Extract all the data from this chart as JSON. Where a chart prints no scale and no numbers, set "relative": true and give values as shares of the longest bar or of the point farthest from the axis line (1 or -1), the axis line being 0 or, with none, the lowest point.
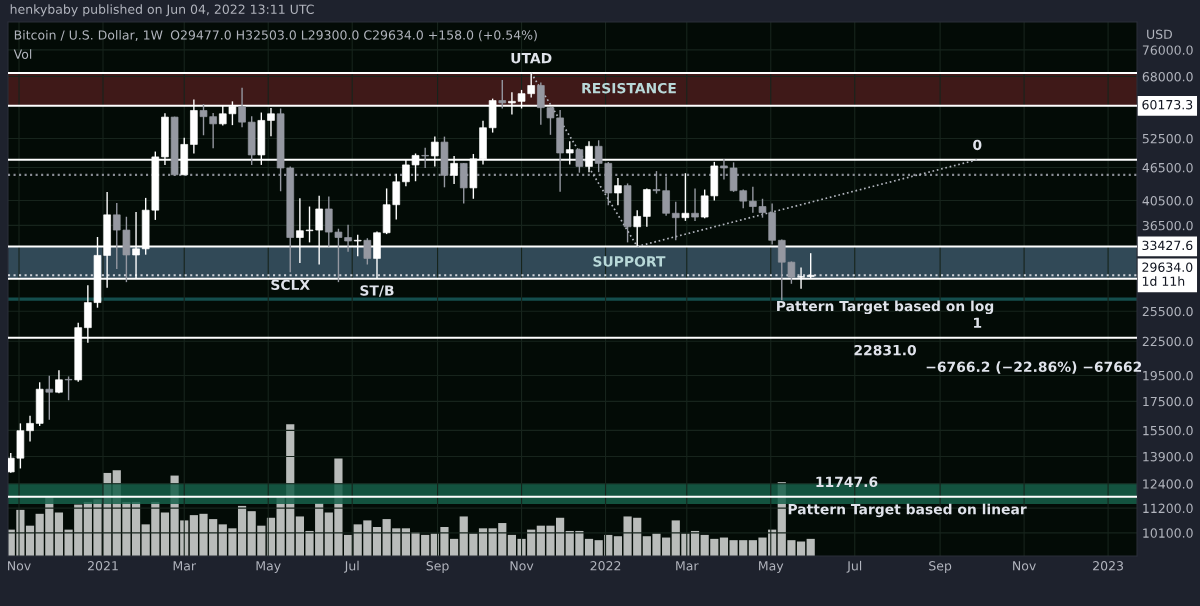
{
  "chart_data": [
    {
      "type": "candlestick",
      "title": "Bitcoin / U.S. Dollar, 1W",
      "ylabel": "USD",
      "x": [
        "2020-10-26",
        "2020-11-02",
        "2020-11-09",
        "2020-11-16",
        "2020-11-23",
        "2020-11-30",
        "2020-12-07",
        "2020-12-14",
        "2020-12-21",
        "2020-12-28",
        "2021-01-04",
        "2021-01-11",
        "2021-01-18",
        "2021-01-25",
        "2021-02-01",
        "2021-02-08",
        "2021-02-15",
        "2021-02-22",
        "2021-03-01",
        "2021-03-08",
        "2021-03-15",
        "2021-03-22",
        "2021-03-29",
        "2021-04-05",
        "2021-04-12",
        "2021-04-19",
        "2021-04-26",
        "2021-05-03",
        "2021-05-10",
        "2021-05-17",
        "2021-05-24",
        "2021-05-31",
        "2021-06-07",
        "2021-06-14",
        "2021-06-21",
        "2021-06-28",
        "2021-07-05",
        "2021-07-12",
        "2021-07-19",
        "2021-07-26",
        "2021-08-02",
        "2021-08-09",
        "2021-08-16",
        "2021-08-23",
        "2021-08-30",
        "2021-09-06",
        "2021-09-13",
        "2021-09-20",
        "2021-09-27",
        "2021-10-04",
        "2021-10-11",
        "2021-10-18",
        "2021-10-25",
        "2021-11-01",
        "2021-11-08",
        "2021-11-15",
        "2021-11-22",
        "2021-11-29",
        "2021-12-06",
        "2021-12-13",
        "2021-12-20",
        "2021-12-27",
        "2022-01-03",
        "2022-01-10",
        "2022-01-17",
        "2022-01-24",
        "2022-01-31",
        "2022-02-07",
        "2022-02-14",
        "2022-02-21",
        "2022-02-28",
        "2022-03-07",
        "2022-03-14",
        "2022-03-21",
        "2022-03-28",
        "2022-04-04",
        "2022-04-11",
        "2022-04-18",
        "2022-04-25",
        "2022-05-02",
        "2022-05-09",
        "2022-05-16",
        "2022-05-23",
        "2022-05-30"
      ],
      "ohlc": [
        [
          13030,
          14100,
          12980,
          13800
        ],
        [
          13800,
          15960,
          13220,
          15480
        ],
        [
          15480,
          16480,
          14800,
          15960
        ],
        [
          15960,
          18950,
          15790,
          18410
        ],
        [
          18410,
          19480,
          16200,
          18180
        ],
        [
          18180,
          19920,
          18110,
          19150
        ],
        [
          19150,
          19420,
          17580,
          19140
        ],
        [
          19140,
          24300,
          19000,
          23810
        ],
        [
          23810,
          28420,
          22350,
          26440
        ],
        [
          26440,
          34780,
          25880,
          32200
        ],
        [
          32200,
          41950,
          28130,
          38150
        ],
        [
          38150,
          40100,
          30420,
          35800
        ],
        [
          35800,
          37850,
          28800,
          32260
        ],
        [
          32260,
          38590,
          29240,
          33100
        ],
        [
          33100,
          40950,
          32300,
          38900
        ],
        [
          38900,
          49700,
          37350,
          48600
        ],
        [
          48600,
          58350,
          47000,
          57400
        ],
        [
          57400,
          57500,
          44900,
          45100
        ],
        [
          45100,
          52650,
          45000,
          51200
        ],
        [
          51200,
          61800,
          49300,
          59000
        ],
        [
          59000,
          60600,
          53200,
          57500
        ],
        [
          57500,
          58400,
          50400,
          55800
        ],
        [
          55800,
          60200,
          55400,
          58200
        ],
        [
          58200,
          61300,
          55500,
          60000
        ],
        [
          60000,
          64900,
          55000,
          56200
        ],
        [
          56200,
          57600,
          47000,
          49000
        ],
        [
          49000,
          58500,
          47000,
          56600
        ],
        [
          56600,
          59600,
          53000,
          58200
        ],
        [
          58200,
          59500,
          42100,
          46400
        ],
        [
          46400,
          46700,
          30000,
          34700
        ],
        [
          34700,
          40900,
          31200,
          35700
        ],
        [
          35700,
          39500,
          34000,
          35800
        ],
        [
          35800,
          41300,
          31000,
          39100
        ],
        [
          39100,
          41200,
          33400,
          35500
        ],
        [
          35500,
          36000,
          28800,
          34700
        ],
        [
          34700,
          36600,
          32700,
          34200
        ],
        [
          34200,
          35100,
          32100,
          34300
        ],
        [
          34300,
          34600,
          31000,
          31800
        ],
        [
          31800,
          35600,
          29300,
          35400
        ],
        [
          35400,
          42600,
          35200,
          39800
        ],
        [
          39800,
          45300,
          37400,
          43800
        ],
        [
          43800,
          48100,
          43000,
          47000
        ],
        [
          47000,
          49300,
          43900,
          48900
        ],
        [
          48900,
          50500,
          46400,
          48800
        ],
        [
          48800,
          52900,
          46700,
          51700
        ],
        [
          51700,
          52900,
          42800,
          45000
        ],
        [
          45000,
          48800,
          43400,
          47300
        ],
        [
          47300,
          47400,
          40000,
          42700
        ],
        [
          42700,
          49200,
          40800,
          48200
        ],
        [
          48200,
          56500,
          47100,
          54900
        ],
        [
          54900,
          62000,
          53800,
          61500
        ],
        [
          61500,
          67000,
          59500,
          60900
        ],
        [
          60900,
          63700,
          58000,
          61300
        ],
        [
          61300,
          64300,
          59500,
          63300
        ],
        [
          63300,
          69000,
          62300,
          65500
        ],
        [
          65500,
          66300,
          55600,
          59700
        ],
        [
          59700,
          59800,
          53300,
          57200
        ],
        [
          57200,
          59100,
          42000,
          49400
        ],
        [
          49400,
          51900,
          47100,
          50100
        ],
        [
          50100,
          50300,
          45500,
          46700
        ],
        [
          46700,
          51900,
          45600,
          50800
        ],
        [
          50800,
          52100,
          45600,
          47300
        ],
        [
          47300,
          47600,
          39700,
          41800
        ],
        [
          41800,
          44500,
          39700,
          43100
        ],
        [
          43100,
          43500,
          34000,
          36300
        ],
        [
          36300,
          38900,
          33430,
          37900
        ],
        [
          37900,
          42600,
          36300,
          42400
        ],
        [
          42400,
          45800,
          41700,
          42200
        ],
        [
          42200,
          44800,
          38000,
          38400
        ],
        [
          38400,
          40300,
          34300,
          37700
        ],
        [
          37700,
          45400,
          37200,
          38400
        ],
        [
          38400,
          42600,
          37200,
          37800
        ],
        [
          37800,
          42400,
          37600,
          41300
        ],
        [
          41300,
          47600,
          40500,
          46800
        ],
        [
          46800,
          48200,
          44200,
          46400
        ],
        [
          46400,
          47500,
          42000,
          42200
        ],
        [
          42200,
          42400,
          39200,
          40400
        ],
        [
          40400,
          42900,
          38500,
          39500
        ],
        [
          39500,
          40800,
          37700,
          38500
        ],
        [
          38500,
          40000,
          33700,
          34300
        ],
        [
          34300,
          34400,
          26700,
          31300
        ],
        [
          31300,
          31400,
          28600,
          29400
        ],
        [
          29400,
          30600,
          28000,
          29477
        ],
        [
          29477,
          32503,
          29300,
          29634
        ]
      ],
      "colors": [
        "#ffffff",
        "#ffffff",
        "#ffffff",
        "#ffffff",
        "#9598a1",
        "#ffffff",
        "#9598a1",
        "#ffffff",
        "#ffffff",
        "#ffffff",
        "#ffffff",
        "#9598a1",
        "#9598a1",
        "#ffffff",
        "#ffffff",
        "#ffffff",
        "#ffffff",
        "#9598a1",
        "#ffffff",
        "#ffffff",
        "#9598a1",
        "#9598a1",
        "#ffffff",
        "#ffffff",
        "#9598a1",
        "#9598a1",
        "#ffffff",
        "#ffffff",
        "#9598a1",
        "#9598a1",
        "#ffffff",
        "#ffffff",
        "#ffffff",
        "#9598a1",
        "#9598a1",
        "#9598a1",
        "#ffffff",
        "#9598a1",
        "#ffffff",
        "#ffffff",
        "#ffffff",
        "#ffffff",
        "#ffffff",
        "#9598a1",
        "#ffffff",
        "#9598a1",
        "#ffffff",
        "#9598a1",
        "#ffffff",
        "#ffffff",
        "#ffffff",
        "#9598a1",
        "#ffffff",
        "#ffffff",
        "#ffffff",
        "#9598a1",
        "#9598a1",
        "#9598a1",
        "#ffffff",
        "#9598a1",
        "#ffffff",
        "#9598a1",
        "#9598a1",
        "#ffffff",
        "#9598a1",
        "#ffffff",
        "#ffffff",
        "#9598a1",
        "#9598a1",
        "#9598a1",
        "#ffffff",
        "#9598a1",
        "#ffffff",
        "#ffffff",
        "#9598a1",
        "#9598a1",
        "#9598a1",
        "#9598a1",
        "#9598a1",
        "#9598a1",
        "#9598a1",
        "#9598a1",
        "#ffffff",
        "#ffffff"
      ],
      "series": [
        {
          "type": "line",
          "x": [
            "2021-11-08",
            "2022-01-24"
          ],
          "values": [
            69000,
            33430
          ],
          "color": "#b2b5be",
          "line_style": "dotted"
        },
        {
          "type": "line",
          "x": [
            "2022-01-24",
            "2022-09-28"
          ],
          "values": [
            33430,
            48020
          ],
          "color": "#b2b5be",
          "line_style": "dotted"
        }
      ],
      "log": "y",
      "grid": true,
      "xlim": [
        "2020-10-24",
        "2023-01-22"
      ],
      "ylim": [
        9170,
        85400
      ],
      "xticks": [
        {
          "value": "2020-11-01",
          "label": "Nov"
        },
        {
          "value": "2021-01-01",
          "label": "2021"
        },
        {
          "value": "2021-03-01",
          "label": "Mar"
        },
        {
          "value": "2021-05-01",
          "label": "May"
        },
        {
          "value": "2021-07-01",
          "label": "Jul"
        },
        {
          "value": "2021-09-01",
          "label": "Sep"
        },
        {
          "value": "2021-11-01",
          "label": "Nov"
        },
        {
          "value": "2022-01-01",
          "label": "2022"
        },
        {
          "value": "2022-03-01",
          "label": "Mar"
        },
        {
          "value": "2022-05-01",
          "label": "May"
        },
        {
          "value": "2022-07-01",
          "label": "Jul"
        },
        {
          "value": "2022-09-01",
          "label": "Sep"
        },
        {
          "value": "2022-11-01",
          "label": "Nov"
        },
        {
          "value": "2023-01-01",
          "label": "2023"
        }
      ],
      "yticks": [
        {
          "value": 76000,
          "label": "76000.0"
        },
        {
          "value": 68000,
          "label": "68000.0"
        },
        {
          "value": 52500,
          "label": "52500.0"
        },
        {
          "value": 46500,
          "label": "46500.0"
        },
        {
          "value": 40500,
          "label": "40500.0"
        },
        {
          "value": 36500,
          "label": "36500.0"
        },
        {
          "value": 25500,
          "label": "25500.0"
        },
        {
          "value": 22500,
          "label": "22500.0"
        },
        {
          "value": 19500,
          "label": "19500.0"
        },
        {
          "value": 17500,
          "label": "17500.0"
        },
        {
          "value": 15500,
          "label": "15500.0"
        },
        {
          "value": 13900,
          "label": "13900.0"
        },
        {
          "value": 12400,
          "label": "12400.0"
        },
        {
          "value": 11200,
          "label": "11200.0"
        },
        {
          "value": 10100,
          "label": "10100.0"
        }
      ],
      "bands": [
        {
          "axis": "y",
          "from": 60173.3,
          "to": 69030,
          "color": "#4a1c1c",
          "label": "RESISTANCE"
        },
        {
          "axis": "y",
          "from": 29200,
          "to": 33427.6,
          "color": "#3a5566",
          "label": "SUPPORT"
        },
        {
          "axis": "y",
          "from": 26650,
          "to": 27000,
          "color": "#175a5a"
        },
        {
          "axis": "y",
          "from": 11390,
          "to": 12430,
          "color": "#16604a"
        }
      ],
      "ref_lines": [
        {
          "axis": "y",
          "value": 69030,
          "color": "#ffffff",
          "line_style": "solid"
        },
        {
          "axis": "y",
          "value": 60173.3,
          "label": "60173.3",
          "color": "#ffffff",
          "line_style": "solid"
        },
        {
          "axis": "y",
          "value": 48020,
          "color": "#ffffff",
          "line_style": "solid"
        },
        {
          "axis": "y",
          "value": 45080,
          "color": "#8a8d95",
          "line_style": "dotted"
        },
        {
          "axis": "y",
          "value": 33427.6,
          "label": "33427.6",
          "color": "#ffffff",
          "line_style": "solid"
        },
        {
          "axis": "y",
          "value": 29634,
          "label": "29634.0\n1d 11h",
          "color": "#d0d3da",
          "line_style": "dotted"
        },
        {
          "axis": "y",
          "value": 29200,
          "color": "#ffffff",
          "line_style": "solid"
        },
        {
          "axis": "y",
          "value": 22831,
          "color": "#ffffff",
          "line_style": "solid"
        },
        {
          "axis": "y",
          "value": 11747.6,
          "color": "#ffffff",
          "line_style": "solid"
        }
      ],
      "annotations": [
        "henkybaby published on Jun 04, 2022 13:11 UTC",
        "O29477.0 H32503.0 L29300.0 C29634.0 +158.0 (+0.54%)",
        "Vol",
        {
          "text": "UTAD",
          "x": "2021-11-08",
          "y": 69000
        },
        {
          "text": "SCLX",
          "x": "2021-05-17",
          "y": 30000
        },
        {
          "text": "ST/B",
          "x": "2021-07-19",
          "y": 29300
        },
        {
          "text": "0",
          "x": "2022-09-28",
          "y": 48020
        },
        {
          "text": "1",
          "x": "2022-09-28",
          "y": 22831
        },
        {
          "text": "22831.0",
          "x": "2022-07-23",
          "y": 22831
        },
        {
          "text": "Pattern Target based on log",
          "x": "2022-07-23",
          "y": 22831
        },
        {
          "text": "−6766.2 (−22.86%) −67662",
          "x": "2022-11-08",
          "y": 22831
        },
        {
          "text": "11747.6",
          "x": "2022-06-25",
          "y": 11747.6
        },
        {
          "text": "Pattern Target based on linear",
          "x": "2022-08-08",
          "y": 11747.6
        }
      ]
    },
    {
      "type": "bar",
      "relative": true,
      "color": "#b9bcba",
      "categories": [
        null,
        null,
        null,
        null,
        null,
        null,
        null,
        null,
        null,
        null,
        null,
        null,
        null,
        null,
        null,
        null,
        null,
        null,
        null,
        null,
        null,
        null,
        null,
        null,
        null,
        null,
        null,
        null,
        null,
        null,
        null,
        null,
        null,
        null,
        null,
        null,
        null,
        null,
        null,
        null,
        null,
        null,
        null,
        null,
        null,
        null,
        null,
        null,
        null,
        null,
        null,
        null,
        null,
        null,
        null,
        null,
        null,
        null,
        null,
        null,
        null,
        null,
        null,
        null,
        null,
        null,
        null,
        null,
        null,
        null,
        null,
        null,
        null,
        null,
        null,
        null,
        null,
        null,
        null,
        null,
        null,
        null,
        null,
        null
      ],
      "values": [
        0.2,
        0.35,
        0.23,
        0.32,
        0.45,
        0.33,
        0.2,
        0.39,
        0.41,
        0.43,
        0.63,
        0.65,
        0.41,
        0.41,
        0.24,
        0.41,
        0.33,
        0.61,
        0.27,
        0.31,
        0.32,
        0.28,
        0.24,
        0.21,
        0.38,
        0.34,
        0.23,
        0.29,
        0.45,
        1,
        0.3,
        0.19,
        0.4,
        0.33,
        0.74,
        0.16,
        0.24,
        0.27,
        0.22,
        0.28,
        0.21,
        0.21,
        0.18,
        0.16,
        0.17,
        0.22,
        0.13,
        0.3,
        0.17,
        0.21,
        0.21,
        0.25,
        0.16,
        0.13,
        0.2,
        0.23,
        0.23,
        0.29,
        0.19,
        0.19,
        0.13,
        0.12,
        0.16,
        0.15,
        0.3,
        0.29,
        0.15,
        0.17,
        0.14,
        0.27,
        0.17,
        0.19,
        0.16,
        0.13,
        0.14,
        0.12,
        0.12,
        0.12,
        0.14,
        0.2,
        0.56,
        0.12,
        0.11,
        0.13
      ]
    }
  ]
}
